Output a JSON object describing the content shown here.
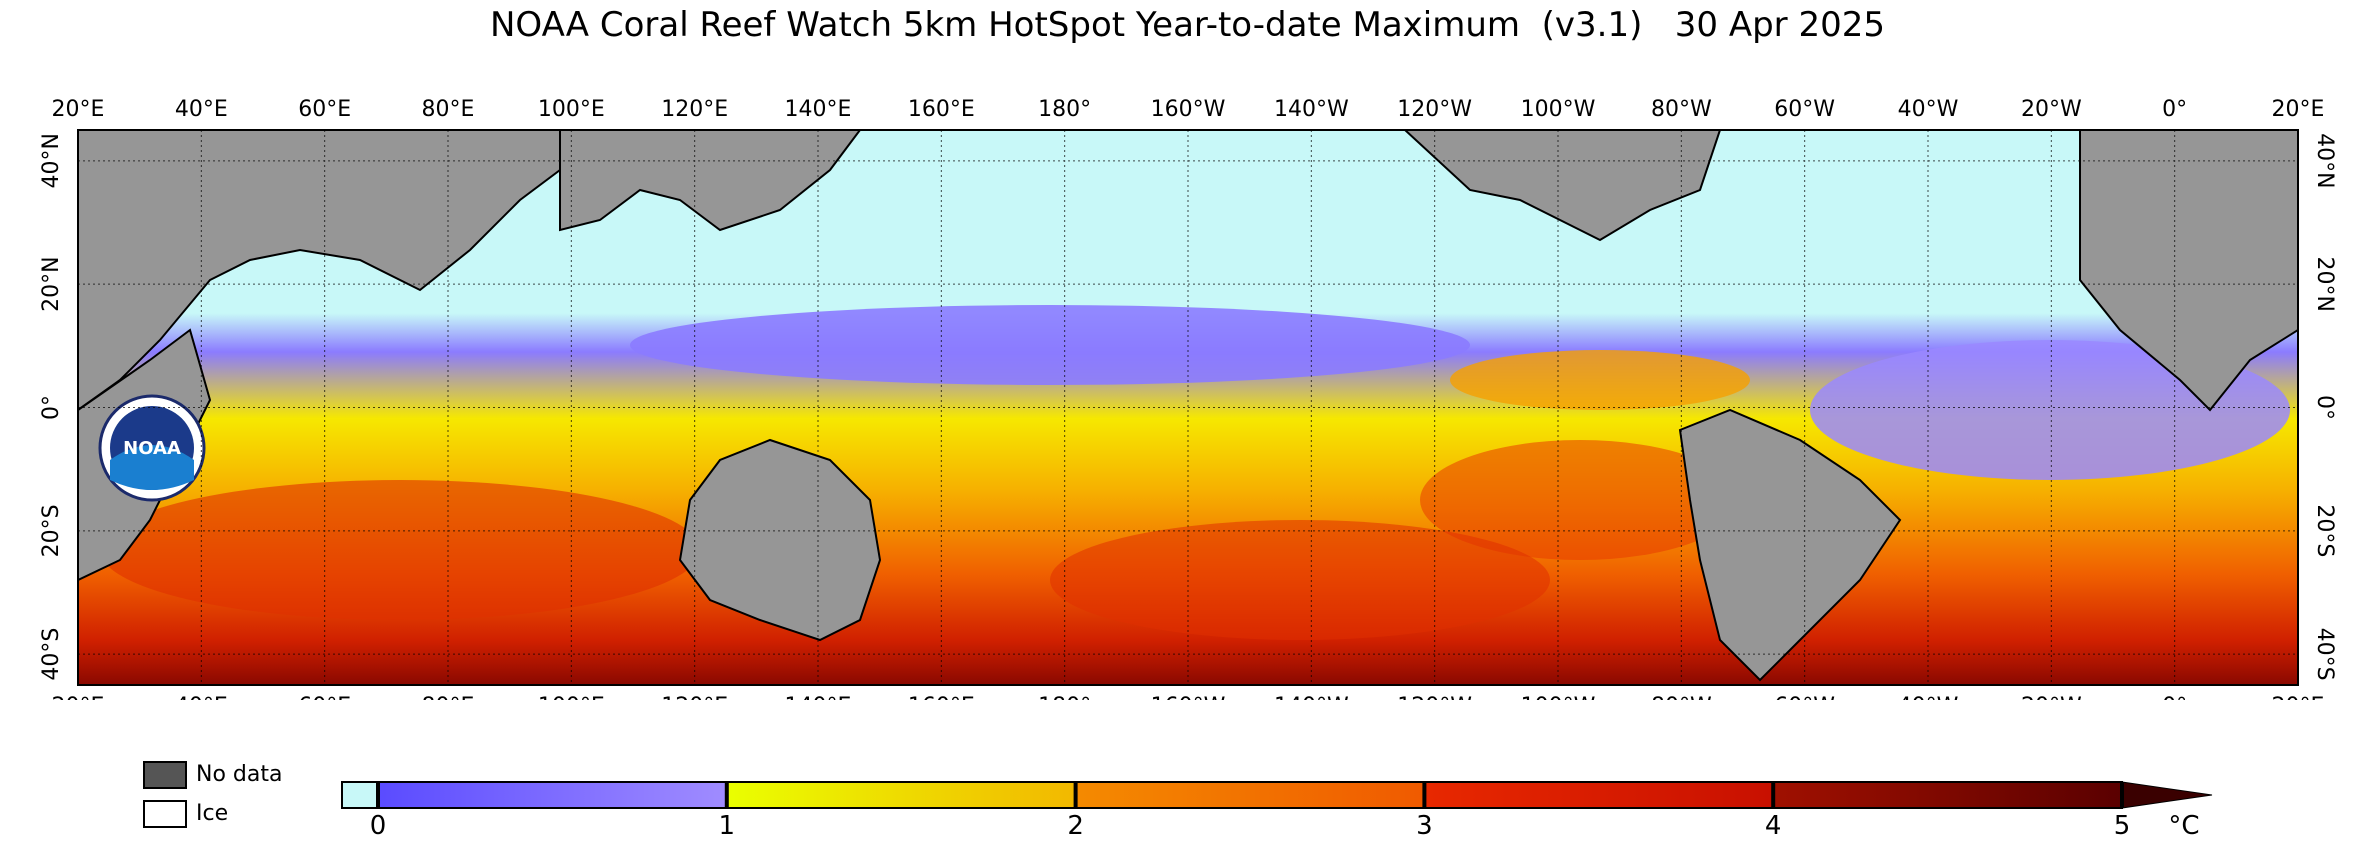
{
  "title": "NOAA Coral Reef Watch 5km HotSpot Year-to-date Maximum  (v3.1)   30 Apr 2025",
  "map": {
    "lon_labels": [
      "20°E",
      "40°E",
      "60°E",
      "80°E",
      "100°E",
      "120°E",
      "140°E",
      "160°E",
      "180°",
      "160°W",
      "140°W",
      "120°W",
      "100°W",
      "80°W",
      "60°W",
      "40°W",
      "20°W",
      "0°",
      "20°E"
    ],
    "lat_labels_left": [
      "40°N",
      "20°N",
      "0°",
      "20°S",
      "40°S"
    ],
    "lat_labels_right": [
      "40°N",
      "20°N",
      "0°",
      "20°S",
      "40°S"
    ],
    "colors": {
      "land": "#969696",
      "ice_free_zero": "#c8f8f8",
      "coast": "#000000",
      "purple": "#8b7bff",
      "yellow": "#f6f000",
      "orange": "#f6a000",
      "red": "#e02a00",
      "darkred": "#7a0a00"
    },
    "logo_text": "NOAA"
  },
  "legend": {
    "no_data_label": "No data",
    "no_data_color": "#555555",
    "ice_label": "Ice",
    "ice_color": "#ffffff"
  },
  "colorbar": {
    "ticks": [
      "0",
      "1",
      "2",
      "3",
      "4",
      "5"
    ],
    "unit": "°C",
    "zero_color": "#c8f8f8",
    "stops": [
      "#5a4bff",
      "#a08cff",
      "#eaff00",
      "#f2b800",
      "#f48a00",
      "#f05a00",
      "#e82800",
      "#c81000",
      "#a01000",
      "#5a0000"
    ]
  }
}
